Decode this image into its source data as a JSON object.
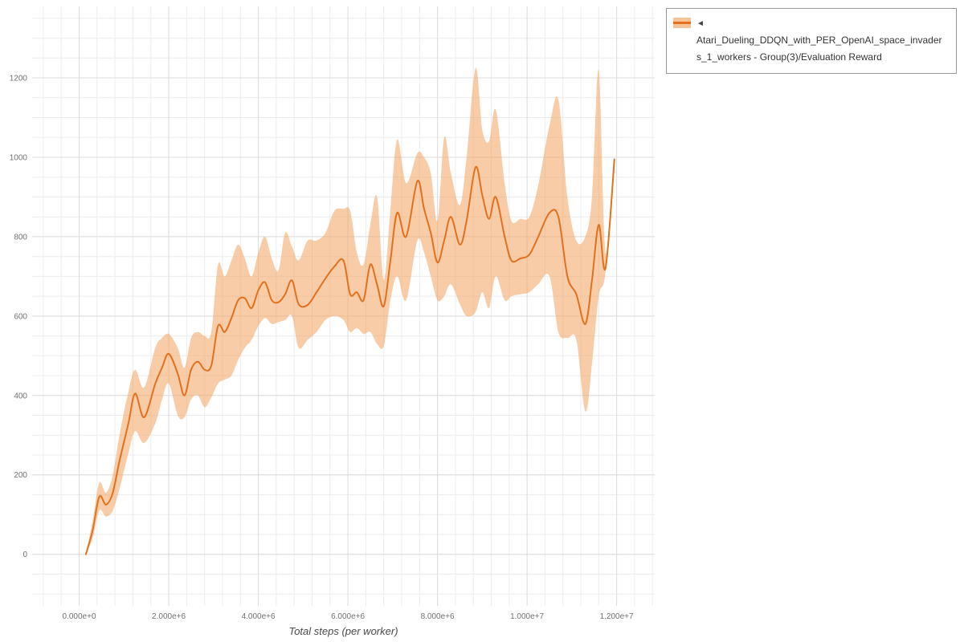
{
  "legend": {
    "marker": "◄",
    "label_line1": "Atari_Dueling_DDQN_with_PER_OpenAI_space_invader",
    "label_line2": "s_1_workers - Group(3)/Evaluation Reward"
  },
  "chart_data": {
    "type": "line",
    "title": "",
    "series_name": "Atari_Dueling_DDQN_with_PER_OpenAI_space_invaders_1_workers - Group(3)/Evaluation Reward",
    "xlabel": "Total steps (per worker)",
    "ylabel": "",
    "xlim": [
      -1050000,
      12850000
    ],
    "ylim": [
      -130,
      1380
    ],
    "legend_position": "top-right",
    "grid": {
      "on": true,
      "x_minor": 400000,
      "y_minor": 50
    },
    "colors": {
      "line": "#e2711d",
      "band": "#f2a35e",
      "band_opacity": 0.55,
      "grid_minor": "#ececec",
      "grid_major": "#dddddd",
      "tick_text": "#707070",
      "axis_label_text": "#4a4a4a",
      "legend_border": "#999999"
    },
    "x_axis": {
      "label": "Total steps (per worker)",
      "ticks": [
        {
          "value": 0,
          "label": "0.000e+0"
        },
        {
          "value": 2000000,
          "label": "2.000e+6"
        },
        {
          "value": 4000000,
          "label": "4.000e+6"
        },
        {
          "value": 6000000,
          "label": "6.000e+6"
        },
        {
          "value": 8000000,
          "label": "8.000e+6"
        },
        {
          "value": 10000000,
          "label": "1.000e+7"
        },
        {
          "value": 12000000,
          "label": "1.200e+7"
        }
      ]
    },
    "y_axis": {
      "label": "",
      "ticks": [
        {
          "value": 0,
          "label": "0"
        },
        {
          "value": 200,
          "label": "200"
        },
        {
          "value": 400,
          "label": "400"
        },
        {
          "value": 600,
          "label": "600"
        },
        {
          "value": 800,
          "label": "800"
        },
        {
          "value": 1000,
          "label": "1000"
        },
        {
          "value": 1200,
          "label": "1200"
        }
      ]
    },
    "x": [
      150000,
      300000,
      450000,
      600000,
      750000,
      900000,
      1100000,
      1250000,
      1450000,
      1700000,
      1850000,
      2000000,
      2200000,
      2350000,
      2500000,
      2650000,
      2800000,
      2950000,
      3100000,
      3250000,
      3400000,
      3550000,
      3700000,
      3850000,
      4000000,
      4150000,
      4300000,
      4450000,
      4600000,
      4750000,
      4900000,
      5100000,
      5300000,
      5500000,
      5700000,
      5900000,
      6050000,
      6200000,
      6350000,
      6500000,
      6650000,
      6800000,
      6950000,
      7100000,
      7300000,
      7550000,
      7700000,
      7850000,
      8000000,
      8150000,
      8300000,
      8500000,
      8650000,
      8850000,
      9000000,
      9150000,
      9300000,
      9500000,
      9650000,
      9850000,
      10050000,
      10250000,
      10500000,
      10700000,
      10900000,
      11100000,
      11300000,
      11450000,
      11600000,
      11750000,
      11950000
    ],
    "series": {
      "mean": [
        0,
        60,
        145,
        125,
        155,
        235,
        330,
        405,
        345,
        430,
        470,
        505,
        455,
        400,
        465,
        485,
        465,
        475,
        575,
        560,
        595,
        640,
        645,
        620,
        665,
        685,
        640,
        635,
        655,
        690,
        630,
        628,
        660,
        695,
        725,
        740,
        655,
        660,
        640,
        730,
        680,
        625,
        740,
        860,
        800,
        940,
        870,
        810,
        735,
        790,
        850,
        780,
        840,
        975,
        905,
        845,
        900,
        800,
        740,
        745,
        755,
        800,
        860,
        850,
        700,
        655,
        580,
        690,
        830,
        720,
        995
      ],
      "lower": [
        0,
        40,
        110,
        95,
        110,
        165,
        255,
        310,
        280,
        330,
        390,
        430,
        350,
        345,
        390,
        400,
        370,
        395,
        430,
        440,
        450,
        490,
        520,
        540,
        575,
        595,
        580,
        585,
        590,
        600,
        520,
        540,
        560,
        590,
        600,
        590,
        560,
        570,
        555,
        560,
        530,
        525,
        640,
        700,
        640,
        790,
        760,
        700,
        640,
        650,
        680,
        630,
        600,
        610,
        660,
        620,
        700,
        640,
        650,
        655,
        660,
        680,
        700,
        560,
        545,
        540,
        360,
        480,
        650,
        710,
        990
      ],
      "upper": [
        0,
        85,
        180,
        155,
        200,
        300,
        410,
        465,
        420,
        520,
        545,
        555,
        520,
        470,
        545,
        560,
        550,
        560,
        730,
        700,
        740,
        780,
        745,
        700,
        760,
        800,
        745,
        715,
        810,
        775,
        740,
        790,
        790,
        810,
        865,
        870,
        865,
        760,
        730,
        830,
        900,
        690,
        870,
        1045,
        935,
        1010,
        1000,
        960,
        840,
        1050,
        960,
        880,
        1000,
        1225,
        1070,
        1040,
        1120,
        935,
        840,
        845,
        850,
        930,
        1080,
        1145,
        900,
        790,
        800,
        900,
        1220,
        760,
        1000
      ]
    }
  }
}
